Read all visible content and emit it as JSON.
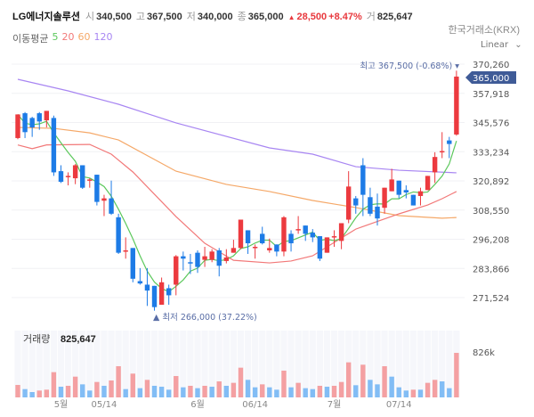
{
  "header": {
    "name": "LG에너지솔루션",
    "open_label": "시",
    "open": "340,500",
    "high_label": "고",
    "high": "367,500",
    "low_label": "저",
    "low": "340,000",
    "close_label": "종",
    "close": "365,000",
    "change_arrow": "▲",
    "change": "28,500",
    "change_pct": "+8.47%",
    "volume_label": "거",
    "volume": "825,647",
    "exchange": "한국거래소(KRX)"
  },
  "ma_legend": {
    "label": "이동평균",
    "items": [
      {
        "label": "5",
        "color": "#5cc85c"
      },
      {
        "label": "20",
        "color": "#f27878"
      },
      {
        "label": "60",
        "color": "#f5a868"
      },
      {
        "label": "120",
        "color": "#a886f2"
      }
    ]
  },
  "scale_selector": {
    "label": "Linear",
    "icon": "chevron-down-icon"
  },
  "colors": {
    "up": "#ec3a3f",
    "down": "#1d7be6",
    "vol_up": "#f4a0a2",
    "vol_down": "#82bdf5",
    "price_tag": "#3f5b97",
    "annotation": "#5a6ea6"
  },
  "chart_data": {
    "type": "candlestick",
    "y_ticks": [
      "370,260",
      "357,918",
      "345,576",
      "333,234",
      "320,892",
      "308,550",
      "296,208",
      "283,866",
      "271,524"
    ],
    "ylim": [
      264000,
      372000
    ],
    "x_tick_labels": [
      {
        "label": "5월",
        "i": 7
      },
      {
        "label": "05/14",
        "i": 13
      },
      {
        "label": "6월",
        "i": 26
      },
      {
        "label": "06/14",
        "i": 34
      },
      {
        "label": "7월",
        "i": 45
      },
      {
        "label": "07/14",
        "i": 54
      }
    ],
    "last_price_tag": "365,000",
    "high_annotation": "최고 367,500 (-0.68%) ▾",
    "low_annotation": "▲ 최저 266,000 (37.22%)",
    "ohlc": [
      [
        339000,
        349000,
        338500,
        349000
      ],
      [
        349500,
        350000,
        339000,
        341500
      ],
      [
        347500,
        348000,
        339500,
        343500
      ],
      [
        349500,
        350000,
        342500,
        346000
      ],
      [
        346500,
        350500,
        343500,
        350500
      ],
      [
        347500,
        348500,
        323000,
        324500
      ],
      [
        325000,
        327500,
        320000,
        320500
      ],
      [
        322500,
        324500,
        319000,
        323000
      ],
      [
        322000,
        328000,
        319500,
        327500
      ],
      [
        327500,
        327500,
        317500,
        318000
      ],
      [
        321000,
        322000,
        318000,
        321500
      ],
      [
        323500,
        323500,
        310500,
        312000
      ],
      [
        312500,
        315000,
        306000,
        313500
      ],
      [
        313500,
        321000,
        306500,
        307000
      ],
      [
        305500,
        307000,
        290000,
        290500
      ],
      [
        291000,
        297000,
        288000,
        291500
      ],
      [
        292500,
        292500,
        278000,
        279500
      ],
      [
        278500,
        284000,
        277000,
        277500
      ],
      [
        277000,
        284000,
        268000,
        274500
      ],
      [
        276500,
        276500,
        266000,
        267500
      ],
      [
        268500,
        280000,
        268500,
        278000
      ],
      [
        275500,
        277000,
        268500,
        272500
      ],
      [
        277000,
        289500,
        272500,
        289000
      ],
      [
        289000,
        291000,
        283000,
        288000
      ],
      [
        286500,
        290000,
        281500,
        286000
      ],
      [
        290500,
        291500,
        282000,
        284500
      ],
      [
        287500,
        293000,
        284500,
        289000
      ],
      [
        287500,
        292000,
        286500,
        291000
      ],
      [
        291500,
        292500,
        280500,
        285000
      ],
      [
        287000,
        292000,
        286000,
        288500
      ],
      [
        290500,
        296000,
        290500,
        292500
      ],
      [
        292500,
        304500,
        292000,
        304500
      ],
      [
        300000,
        300000,
        290000,
        294500
      ],
      [
        292500,
        294000,
        288000,
        293000
      ],
      [
        298500,
        301500,
        294000,
        294500
      ],
      [
        291500,
        296500,
        290500,
        292500
      ],
      [
        294000,
        294000,
        289000,
        291000
      ],
      [
        291000,
        306000,
        289000,
        305500
      ],
      [
        298500,
        300000,
        291000,
        294500
      ],
      [
        300000,
        306000,
        298500,
        300500
      ],
      [
        302000,
        302000,
        295500,
        298500
      ],
      [
        299000,
        300500,
        295000,
        297000
      ],
      [
        297500,
        297500,
        287000,
        288000
      ],
      [
        290500,
        297000,
        290500,
        297000
      ],
      [
        297000,
        300000,
        293000,
        297500
      ],
      [
        295500,
        303000,
        292000,
        303000
      ],
      [
        304500,
        325000,
        303000,
        318500
      ],
      [
        313500,
        314500,
        307000,
        310500
      ],
      [
        327500,
        330500,
        306000,
        315000
      ],
      [
        314000,
        318000,
        306000,
        307000
      ],
      [
        310000,
        315500,
        302000,
        305000
      ],
      [
        309500,
        318000,
        307000,
        318000
      ],
      [
        316500,
        326000,
        316500,
        321500
      ],
      [
        321000,
        321000,
        313500,
        315000
      ],
      [
        317000,
        319000,
        313500,
        316000
      ],
      [
        315000,
        315000,
        310500,
        310500
      ],
      [
        314500,
        318000,
        310500,
        316500
      ],
      [
        317000,
        323000,
        317000,
        323000
      ],
      [
        324500,
        333000,
        320000,
        331000
      ],
      [
        333000,
        341500,
        330500,
        333500
      ],
      [
        338000,
        339500,
        330500,
        336500
      ],
      [
        340500,
        367500,
        340000,
        365000
      ]
    ],
    "volume_label": "거래량",
    "volume_value": "825,647",
    "volume_tick": "826k",
    "volume_max": 826000,
    "volume": [
      231000,
      154000,
      99000,
      127000,
      143000,
      468000,
      198000,
      215000,
      385000,
      242000,
      127000,
      286000,
      215000,
      314000,
      578000,
      154000,
      441000,
      171000,
      325000,
      215000,
      198000,
      143000,
      396000,
      187000,
      215000,
      171000,
      215000,
      198000,
      297000,
      215000,
      270000,
      551000,
      325000,
      187000,
      242000,
      187000,
      143000,
      496000,
      187000,
      270000,
      171000,
      154000,
      215000,
      198000,
      215000,
      286000,
      650000,
      226000,
      606000,
      325000,
      242000,
      578000,
      385000,
      187000,
      127000,
      143000,
      143000,
      270000,
      325000,
      297000,
      171000,
      825647
    ],
    "volume_dir": "UDDUUUDUUDDUDUUDUDUDDDUDUDUDUDUUDDUDDUDUDDUDUUUDUDDUDDDUDUUDDU",
    "moving_averages": [
      {
        "name": "120",
        "color": "#a886f2",
        "points": [
          [
            1,
            363850
          ],
          [
            8,
            358960
          ],
          [
            15,
            353300
          ],
          [
            23,
            345400
          ],
          [
            36,
            334830
          ],
          [
            42,
            332200
          ],
          [
            48,
            326900
          ],
          [
            54,
            325400
          ],
          [
            62,
            324300
          ]
        ]
      },
      {
        "name": "60",
        "color": "#f5a868",
        "points": [
          [
            1,
            343500
          ],
          [
            6,
            343100
          ],
          [
            11,
            341200
          ],
          [
            15,
            338200
          ],
          [
            23,
            325000
          ],
          [
            30,
            319400
          ],
          [
            36,
            316400
          ],
          [
            42,
            312600
          ],
          [
            48,
            309600
          ],
          [
            54,
            306200
          ],
          [
            60,
            305100
          ],
          [
            62,
            305400
          ]
        ]
      },
      {
        "name": "20",
        "color": "#f27878",
        "points": [
          [
            1,
            336100
          ],
          [
            3,
            334500
          ],
          [
            5,
            336100
          ],
          [
            11,
            336300
          ],
          [
            14,
            332200
          ],
          [
            17,
            324660
          ],
          [
            23,
            305800
          ],
          [
            27,
            294500
          ],
          [
            31,
            287300
          ],
          [
            36,
            286200
          ],
          [
            39,
            287000
          ],
          [
            42,
            289200
          ],
          [
            48,
            300500
          ],
          [
            54,
            306950
          ],
          [
            58,
            310700
          ],
          [
            60,
            313350
          ],
          [
            62,
            316400
          ]
        ]
      },
      {
        "name": "5",
        "color": "#5cc85c",
        "period": 5
      }
    ]
  }
}
